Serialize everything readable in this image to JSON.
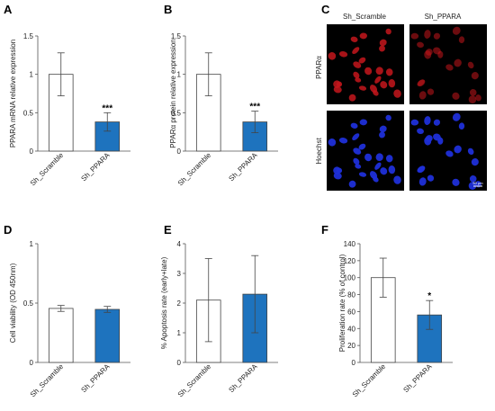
{
  "chart_data": [
    {
      "panel": "A",
      "type": "bar",
      "categories": [
        "Sh_Scramble",
        "Sh_PPARA"
      ],
      "values": [
        1.0,
        0.38
      ],
      "errors": [
        0.28,
        0.12
      ],
      "significance": [
        "",
        "***"
      ],
      "ylabel": "PPARA mRNA relative expression",
      "ylim": [
        0,
        1.5
      ],
      "yticks": [
        "0",
        "0.5",
        "1",
        "1.5"
      ],
      "colors": [
        "#ffffff",
        "#1e73be"
      ]
    },
    {
      "panel": "B",
      "type": "bar",
      "categories": [
        "Sh_Scramble",
        "Sh_PPARA"
      ],
      "values": [
        1.0,
        0.38
      ],
      "errors": [
        0.28,
        0.14
      ],
      "significance": [
        "",
        "***"
      ],
      "ylabel": "PPARα protein relative expression",
      "ylim": [
        0,
        1.5
      ],
      "yticks": [
        "0",
        "0.5",
        "1",
        "1.5"
      ],
      "colors": [
        "#ffffff",
        "#1e73be"
      ]
    },
    {
      "panel": "D",
      "type": "bar",
      "categories": [
        "Sh_Scramble",
        "Sh_PPARA"
      ],
      "values": [
        0.455,
        0.447
      ],
      "errors": [
        0.025,
        0.025
      ],
      "significance": [
        "",
        ""
      ],
      "ylabel": "Cell viability (OD 450nm)",
      "ylim": [
        0,
        1
      ],
      "yticks": [
        "0",
        "0.5",
        "1"
      ],
      "colors": [
        "#ffffff",
        "#1e73be"
      ]
    },
    {
      "panel": "E",
      "type": "bar",
      "categories": [
        "Sh_Scramble",
        "Sh_PPARA"
      ],
      "values": [
        2.1,
        2.3
      ],
      "errors": [
        1.4,
        1.3
      ],
      "significance": [
        "",
        ""
      ],
      "ylabel": "% Apoptosis rate (early+late)",
      "ylim": [
        0,
        4
      ],
      "yticks": [
        "0",
        "1",
        "2",
        "3",
        "4"
      ],
      "colors": [
        "#ffffff",
        "#1e73be"
      ]
    },
    {
      "panel": "F",
      "type": "bar",
      "categories": [
        "Sh_Scramble",
        "Sh_PPARA"
      ],
      "values": [
        100,
        56
      ],
      "errors": [
        23,
        17
      ],
      "significance": [
        "",
        "*"
      ],
      "ylabel": "Proliferation rate (% of control)",
      "ylim": [
        0,
        140
      ],
      "yticks": [
        "0",
        "20",
        "40",
        "60",
        "80",
        "100",
        "120",
        "140"
      ],
      "colors": [
        "#ffffff",
        "#1e73be"
      ]
    }
  ],
  "microscopy": {
    "panel": "C",
    "columns": [
      "Sh_Scramble",
      "Sh_PPARA"
    ],
    "rows": [
      "PPARα",
      "Hoechst"
    ],
    "scale_bar": "50 μm",
    "colors": {
      "ppar": "#c4161c",
      "hoechst": "#1f2fd8",
      "background": "#000000"
    }
  }
}
